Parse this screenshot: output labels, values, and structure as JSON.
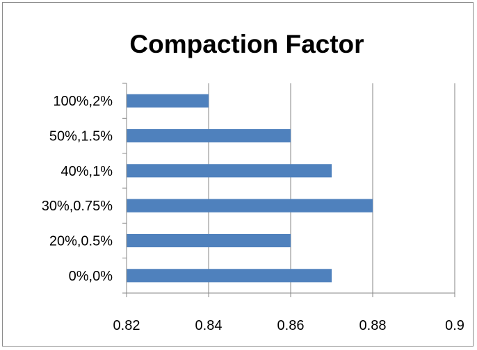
{
  "chart_data": {
    "type": "bar",
    "orientation": "horizontal",
    "title": "Compaction Factor",
    "xlabel": "",
    "ylabel": "",
    "categories": [
      "0%,0%",
      "20%,0.5%",
      "30%,0.75%",
      "40%,1%",
      "50%,1.5%",
      "100%,2%"
    ],
    "values": [
      0.87,
      0.86,
      0.88,
      0.87,
      0.86,
      0.84
    ],
    "xlim": [
      0.82,
      0.9
    ],
    "x_ticks": [
      0.82,
      0.84,
      0.86,
      0.88,
      0.9
    ],
    "x_tick_labels": [
      "0.82",
      "0.84",
      "0.86",
      "0.88",
      "0.9"
    ],
    "grid": "vertical major gridlines",
    "legend": "none",
    "bar_color": "#4f81bd",
    "gridline_color": "#868686"
  }
}
